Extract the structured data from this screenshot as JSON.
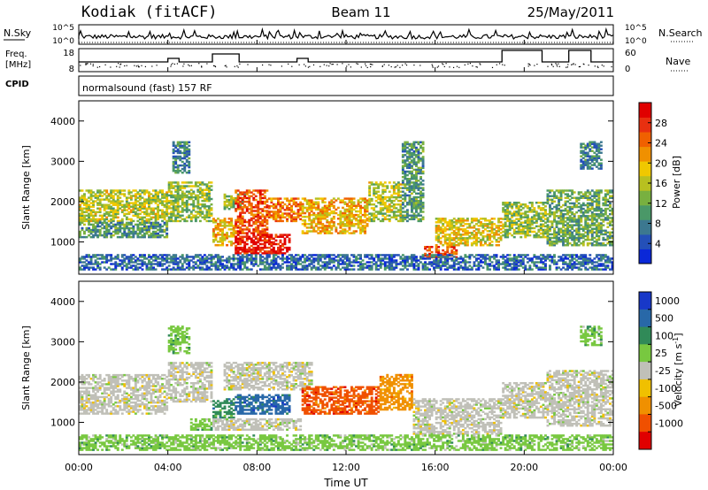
{
  "header": {
    "station": "Kodiak (fitACF)",
    "beam": "Beam 11",
    "date": "25/May/2011"
  },
  "panels": {
    "nsky": {
      "left_label": "N.Sky",
      "right_label": "N.Search",
      "left_ticks": [
        "10^5",
        "10^0"
      ],
      "right_ticks": [
        "10^5",
        "10^0"
      ]
    },
    "freq": {
      "left_label_1": "Freq.",
      "left_label_2": "[MHz]",
      "right_label": "Nave",
      "left_ticks": [
        "18",
        "8"
      ],
      "right_ticks": [
        "60",
        "0"
      ]
    },
    "cpid": {
      "label": "CPID",
      "text": "normalsound (fast) 157 RF"
    }
  },
  "chart_data": [
    {
      "type": "heatmap",
      "name": "power",
      "ylabel": "Slant Range [km]",
      "ylim": [
        200,
        4500
      ],
      "yticks": [
        1000,
        2000,
        3000,
        4000
      ],
      "colorbar": {
        "label": "Power [dB]",
        "ticks": [
          4,
          8,
          12,
          16,
          20,
          24,
          28
        ],
        "range": [
          0,
          32
        ],
        "colors": [
          "#0a28d8",
          "#2450b8",
          "#3c7890",
          "#4a9868",
          "#78b040",
          "#b8c020",
          "#f0c800",
          "#f09000",
          "#f06000",
          "#e83010",
          "#e00000"
        ]
      },
      "bands": [
        {
          "t": [
            0.0,
            4.0
          ],
          "r": [
            1500,
            2300
          ],
          "v": 16
        },
        {
          "t": [
            0.0,
            4.0
          ],
          "r": [
            1100,
            1500
          ],
          "v": 10
        },
        {
          "t": [
            4.0,
            6.0
          ],
          "r": [
            1500,
            2500
          ],
          "v": 14
        },
        {
          "t": [
            4.2,
            5.0
          ],
          "r": [
            2700,
            3500
          ],
          "v": 8
        },
        {
          "t": [
            6.0,
            7.0
          ],
          "r": [
            900,
            1600
          ],
          "v": 20
        },
        {
          "t": [
            6.5,
            7.5
          ],
          "r": [
            1800,
            2200
          ],
          "v": 14
        },
        {
          "t": [
            7.0,
            8.5
          ],
          "r": [
            1200,
            2300
          ],
          "v": 26
        },
        {
          "t": [
            7.0,
            9.5
          ],
          "r": [
            700,
            1200
          ],
          "v": 30
        },
        {
          "t": [
            8.5,
            10.0
          ],
          "r": [
            1500,
            2100
          ],
          "v": 24
        },
        {
          "t": [
            10.0,
            13.0
          ],
          "r": [
            1200,
            2100
          ],
          "v": 20
        },
        {
          "t": [
            13.0,
            14.5
          ],
          "r": [
            1500,
            2500
          ],
          "v": 16
        },
        {
          "t": [
            14.5,
            15.5
          ],
          "r": [
            1500,
            3500
          ],
          "v": 10
        },
        {
          "t": [
            15.5,
            17.0
          ],
          "r": [
            600,
            900
          ],
          "v": 26
        },
        {
          "t": [
            16.0,
            19.0
          ],
          "r": [
            900,
            1600
          ],
          "v": 18
        },
        {
          "t": [
            19.0,
            21.0
          ],
          "r": [
            1100,
            2000
          ],
          "v": 14
        },
        {
          "t": [
            21.0,
            24.0
          ],
          "r": [
            900,
            2300
          ],
          "v": 12
        },
        {
          "t": [
            22.5,
            23.5
          ],
          "r": [
            2800,
            3500
          ],
          "v": 8
        },
        {
          "t": [
            0.0,
            24.0
          ],
          "r": [
            300,
            700
          ],
          "v": 6
        }
      ]
    },
    {
      "type": "heatmap",
      "name": "velocity",
      "ylabel": "Slant Range [km]",
      "ylim": [
        200,
        4500
      ],
      "yticks": [
        1000,
        2000,
        3000,
        4000
      ],
      "colorbar": {
        "label": "Velocity [m s",
        "label_sup": "-1",
        "label_end": "]",
        "ticks": [
          "1000",
          "500",
          "100",
          "25",
          "-25",
          "-100",
          "-500",
          "-1000"
        ],
        "colors": [
          "#1838c8",
          "#2868a8",
          "#308a58",
          "#78c840",
          "#c0c0b8",
          "#f0c000",
          "#f09000",
          "#f05000",
          "#e00000"
        ]
      },
      "bands": [
        {
          "t": [
            0.0,
            4.0
          ],
          "r": [
            1200,
            2200
          ],
          "c": 4
        },
        {
          "t": [
            4.0,
            6.0
          ],
          "r": [
            1500,
            2500
          ],
          "c": 4
        },
        {
          "t": [
            4.0,
            5.0
          ],
          "r": [
            2700,
            3400
          ],
          "c": 3
        },
        {
          "t": [
            5.0,
            6.0
          ],
          "r": [
            800,
            1100
          ],
          "c": 3
        },
        {
          "t": [
            6.0,
            7.0
          ],
          "r": [
            1100,
            1600
          ],
          "c": 2
        },
        {
          "t": [
            7.0,
            9.5
          ],
          "r": [
            1200,
            1700
          ],
          "c": 1
        },
        {
          "t": [
            6.0,
            10.0
          ],
          "r": [
            800,
            1100
          ],
          "c": 4
        },
        {
          "t": [
            6.5,
            10.5
          ],
          "r": [
            1800,
            2500
          ],
          "c": 4
        },
        {
          "t": [
            10.0,
            13.5
          ],
          "r": [
            1200,
            1900
          ],
          "c": 7
        },
        {
          "t": [
            13.5,
            15.0
          ],
          "r": [
            1300,
            2200
          ],
          "c": 6
        },
        {
          "t": [
            15.0,
            19.0
          ],
          "r": [
            700,
            1600
          ],
          "c": 4
        },
        {
          "t": [
            19.0,
            21.0
          ],
          "r": [
            1100,
            2000
          ],
          "c": 4
        },
        {
          "t": [
            21.0,
            24.0
          ],
          "r": [
            900,
            2300
          ],
          "c": 4
        },
        {
          "t": [
            22.5,
            23.5
          ],
          "r": [
            2900,
            3400
          ],
          "c": 3
        },
        {
          "t": [
            0.0,
            24.0
          ],
          "r": [
            300,
            700
          ],
          "c": 3
        }
      ]
    }
  ],
  "x_axis": {
    "label": "Time UT",
    "ticks": [
      "00:00",
      "04:00",
      "08:00",
      "12:00",
      "16:00",
      "20:00",
      "00:00"
    ],
    "range": [
      0,
      24
    ]
  }
}
